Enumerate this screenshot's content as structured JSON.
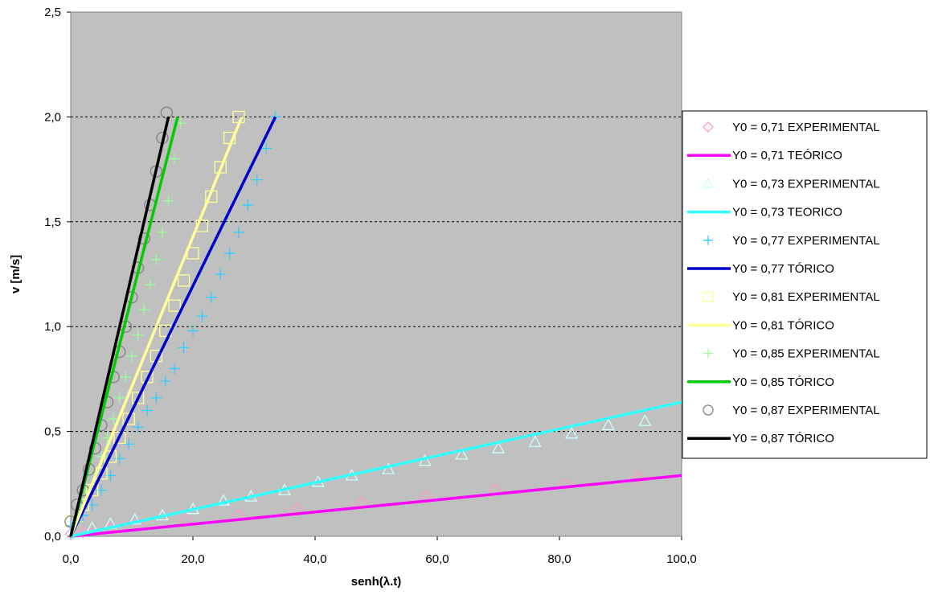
{
  "chart_data": {
    "type": "scatter",
    "title": "",
    "xlabel": "senh(λ.t)",
    "ylabel": "v [m/s]",
    "xlim": [
      0,
      100
    ],
    "ylim": [
      0,
      2.5
    ],
    "x_ticks": [
      "0,0",
      "20,0",
      "40,0",
      "60,0",
      "80,0",
      "100,0"
    ],
    "y_ticks": [
      "0,0",
      "0,5",
      "1,0",
      "1,5",
      "2,0",
      "2,5"
    ],
    "grid": "horizontal dashed",
    "legend_position": "right",
    "plot_background": "#c0c0c0",
    "series": [
      {
        "name": "Y0 = 0,71 EXPERIMENTAL",
        "kind": "marker",
        "marker": "diamond",
        "color": "#ff99cc",
        "x": [
          0,
          2,
          6.5,
          11,
          19,
          27.5,
          37,
          47.5,
          58,
          69.5,
          81,
          93
        ],
        "y": [
          0.01,
          0.02,
          0.04,
          0.06,
          0.08,
          0.1,
          0.13,
          0.16,
          0.19,
          0.22,
          0.25,
          0.28
        ]
      },
      {
        "name": "Y0 = 0,71 TEÓRICO",
        "kind": "line",
        "color": "#ff00ff",
        "x": [
          0,
          100
        ],
        "y": [
          0,
          0.29
        ]
      },
      {
        "name": "Y0 = 0,73 EXPERIMENTAL",
        "kind": "marker",
        "marker": "triangle",
        "color": "#ccffff",
        "x": [
          0,
          3.5,
          6.5,
          10.5,
          15,
          20,
          25,
          29.5,
          35,
          40.5,
          46,
          52,
          58,
          64,
          70,
          76,
          82,
          88,
          94
        ],
        "y": [
          0.01,
          0.04,
          0.06,
          0.08,
          0.1,
          0.13,
          0.17,
          0.19,
          0.22,
          0.26,
          0.29,
          0.32,
          0.36,
          0.39,
          0.42,
          0.45,
          0.49,
          0.53,
          0.55
        ]
      },
      {
        "name": "Y0 = 0,73 TEORICO",
        "kind": "line",
        "color": "#33ffff",
        "x": [
          0,
          100
        ],
        "y": [
          0,
          0.64
        ]
      },
      {
        "name": "Y0 = 0,77 EXPERIMENTAL",
        "kind": "marker",
        "marker": "plus",
        "color": "#33ccff",
        "x": [
          0,
          2,
          3.5,
          5,
          6.5,
          8,
          9.5,
          11,
          12.5,
          14,
          15.5,
          17,
          18.5,
          20,
          21.5,
          23,
          24.5,
          26,
          27.5,
          29,
          30.5,
          32,
          33.5
        ],
        "y": [
          0.05,
          0.1,
          0.15,
          0.22,
          0.29,
          0.37,
          0.44,
          0.52,
          0.6,
          0.66,
          0.74,
          0.8,
          0.9,
          0.98,
          1.05,
          1.14,
          1.25,
          1.35,
          1.45,
          1.58,
          1.7,
          1.85,
          2.0
        ]
      },
      {
        "name": "Y0 = 0,77 TÓRICO",
        "kind": "line",
        "color": "#0000cc",
        "x": [
          0,
          33.5
        ],
        "y": [
          0,
          2.0
        ]
      },
      {
        "name": "Y0 = 0,81 EXPERIMENTAL",
        "kind": "marker",
        "marker": "square",
        "color": "#ffff99",
        "x": [
          0,
          2,
          3.5,
          5,
          6.5,
          8,
          9.5,
          11,
          12.5,
          14,
          15.5,
          17,
          18.5,
          20,
          21.5,
          23,
          24.5,
          26,
          27.5
        ],
        "y": [
          0.07,
          0.15,
          0.22,
          0.3,
          0.38,
          0.47,
          0.56,
          0.66,
          0.76,
          0.86,
          0.98,
          1.1,
          1.22,
          1.35,
          1.48,
          1.62,
          1.76,
          1.9,
          2.0
        ]
      },
      {
        "name": "Y0 = 0,81 TÓRICO",
        "kind": "line",
        "color": "#ffff99",
        "x": [
          0,
          28
        ],
        "y": [
          0,
          2.0
        ]
      },
      {
        "name": "Y0 = 0,85 EXPERIMENTAL",
        "kind": "marker",
        "marker": "plus",
        "color": "#99ff99",
        "x": [
          1,
          2,
          3,
          4,
          5,
          6,
          7,
          8,
          9,
          10,
          11,
          12,
          13,
          14,
          15,
          16,
          17,
          18
        ],
        "y": [
          0.07,
          0.15,
          0.22,
          0.3,
          0.38,
          0.47,
          0.56,
          0.66,
          0.76,
          0.86,
          0.96,
          1.08,
          1.2,
          1.32,
          1.45,
          1.6,
          1.8,
          1.97
        ]
      },
      {
        "name": "Y0 = 0,85 TÓRICO",
        "kind": "line",
        "color": "#00cc00",
        "x": [
          0,
          17.5
        ],
        "y": [
          0,
          2.0
        ]
      },
      {
        "name": "Y0 = 0,87 EXPERIMENTAL",
        "kind": "marker",
        "marker": "circle",
        "color": "#808080",
        "x": [
          0,
          1,
          2,
          3,
          4,
          5,
          6,
          7,
          8,
          9,
          10,
          11,
          12,
          13,
          14,
          15,
          15.7
        ],
        "y": [
          0.07,
          0.15,
          0.22,
          0.32,
          0.42,
          0.53,
          0.64,
          0.76,
          0.88,
          1.0,
          1.14,
          1.28,
          1.42,
          1.58,
          1.74,
          1.9,
          2.02
        ]
      },
      {
        "name": "Y0 = 0,87 TÓRICO",
        "kind": "line",
        "color": "#000000",
        "x": [
          0,
          16
        ],
        "y": [
          0,
          2.0
        ]
      }
    ]
  }
}
